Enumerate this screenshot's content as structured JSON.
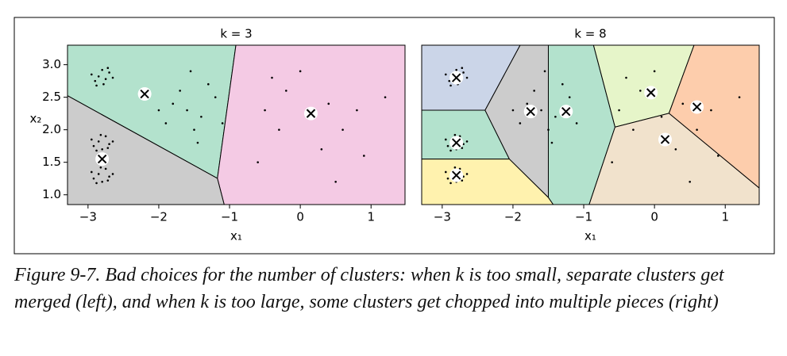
{
  "chart_data": [
    {
      "type": "voronoi-scatter",
      "title": "k = 3",
      "xlabel": "x₁",
      "ylabel": "x₂",
      "xlim": [
        -3.29,
        1.48
      ],
      "ylim": [
        0.85,
        3.3
      ],
      "xticks": [
        {
          "value": -3,
          "label": "−3"
        },
        {
          "value": -2,
          "label": "−2"
        },
        {
          "value": -1,
          "label": "−1"
        },
        0,
        1
      ],
      "yticks": [
        {
          "value": 1,
          "label": "1.0"
        },
        1.5,
        {
          "value": 2,
          "label": "2.0"
        },
        2.5,
        {
          "value": 3,
          "label": "3.0"
        }
      ],
      "x": [
        -2.85,
        -2.75,
        -2.9,
        -2.7,
        -2.8,
        -2.95,
        -2.78,
        -2.65,
        -2.88,
        -2.72,
        -2.85,
        -2.7,
        -2.92,
        -2.75,
        -2.8,
        -2.95,
        -2.65,
        -2.82,
        -2.88,
        -2.72,
        -2.85,
        -2.7,
        -2.92,
        -2.75,
        -2.8,
        -2.95,
        -2.65,
        -2.82,
        -2.88,
        -2.72,
        -1.6,
        -1.4,
        -1.8,
        -1.2,
        -1.5,
        -1.9,
        -1.3,
        -1.7,
        -1.1,
        -2.0,
        -1.45,
        -1.55,
        0.1,
        0.4,
        -0.3,
        0.6,
        -0.2,
        0.3,
        0.8,
        -0.5,
        0.0,
        0.9,
        -0.6,
        1.2,
        0.5,
        -0.4
      ],
      "values": [
        2.82,
        2.78,
        2.75,
        2.88,
        2.92,
        2.85,
        2.7,
        2.8,
        2.68,
        2.95,
        1.82,
        1.78,
        1.75,
        1.9,
        1.7,
        1.85,
        1.82,
        1.92,
        1.68,
        1.72,
        1.32,
        1.28,
        1.25,
        1.4,
        1.2,
        1.35,
        1.32,
        1.42,
        1.18,
        1.22,
        2.3,
        2.2,
        2.4,
        2.5,
        2.0,
        2.1,
        2.7,
        2.6,
        2.1,
        2.3,
        1.8,
        2.9,
        2.2,
        2.4,
        2.0,
        2.0,
        2.6,
        1.7,
        2.3,
        2.3,
        2.9,
        1.6,
        1.5,
        2.5,
        1.2,
        2.8
      ],
      "centroids": {
        "x": [
          -2.2,
          0.15,
          -2.8
        ],
        "values": [
          2.55,
          2.25,
          1.55
        ],
        "colors": [
          "#b3e2cd",
          "#f4cae4",
          "#cccccc"
        ]
      }
    },
    {
      "type": "voronoi-scatter",
      "title": "k = 8",
      "xlabel": "x₁",
      "xlim": [
        -3.29,
        1.48
      ],
      "ylim": [
        0.85,
        3.3
      ],
      "xticks": [
        {
          "value": -3,
          "label": "−3"
        },
        {
          "value": -2,
          "label": "−2"
        },
        {
          "value": -1,
          "label": "−1"
        },
        0,
        1
      ],
      "x": [
        -2.85,
        -2.75,
        -2.9,
        -2.7,
        -2.8,
        -2.95,
        -2.78,
        -2.65,
        -2.88,
        -2.72,
        -2.85,
        -2.7,
        -2.92,
        -2.75,
        -2.8,
        -2.95,
        -2.65,
        -2.82,
        -2.88,
        -2.72,
        -2.85,
        -2.7,
        -2.92,
        -2.75,
        -2.8,
        -2.95,
        -2.65,
        -2.82,
        -2.88,
        -2.72,
        -1.6,
        -1.4,
        -1.8,
        -1.2,
        -1.5,
        -1.9,
        -1.3,
        -1.7,
        -1.1,
        -2.0,
        -1.45,
        -1.55,
        0.1,
        0.4,
        -0.3,
        0.6,
        -0.2,
        0.3,
        0.8,
        -0.5,
        0.0,
        0.9,
        -0.6,
        1.2,
        0.5,
        -0.4
      ],
      "values": [
        2.82,
        2.78,
        2.75,
        2.88,
        2.92,
        2.85,
        2.7,
        2.8,
        2.68,
        2.95,
        1.82,
        1.78,
        1.75,
        1.9,
        1.7,
        1.85,
        1.82,
        1.92,
        1.68,
        1.72,
        1.32,
        1.28,
        1.25,
        1.4,
        1.2,
        1.35,
        1.32,
        1.42,
        1.18,
        1.22,
        2.3,
        2.2,
        2.4,
        2.5,
        2.0,
        2.1,
        2.7,
        2.6,
        2.1,
        2.3,
        1.8,
        2.9,
        2.2,
        2.4,
        2.0,
        2.0,
        2.6,
        1.7,
        2.3,
        2.3,
        2.9,
        1.6,
        1.5,
        2.5,
        1.2,
        2.8
      ],
      "centroids": {
        "x": [
          -2.8,
          -2.8,
          -2.8,
          -1.75,
          -1.25,
          -0.05,
          0.15,
          0.6
        ],
        "values": [
          2.8,
          1.8,
          1.3,
          2.28,
          2.28,
          2.57,
          1.85,
          2.35
        ],
        "colors": [
          "#cbd5e8",
          "#b3e2cd",
          "#fff2ae",
          "#cccccc",
          "#b3e2cd",
          "#e6f5c9",
          "#f1e2cc",
          "#fdcdac"
        ]
      }
    }
  ],
  "caption": "Figure 9-7. Bad choices for the number of clusters: when k is too small, separate clusters get merged (left), and when k is too large, some clusters get chopped into multiple pieces (right)"
}
